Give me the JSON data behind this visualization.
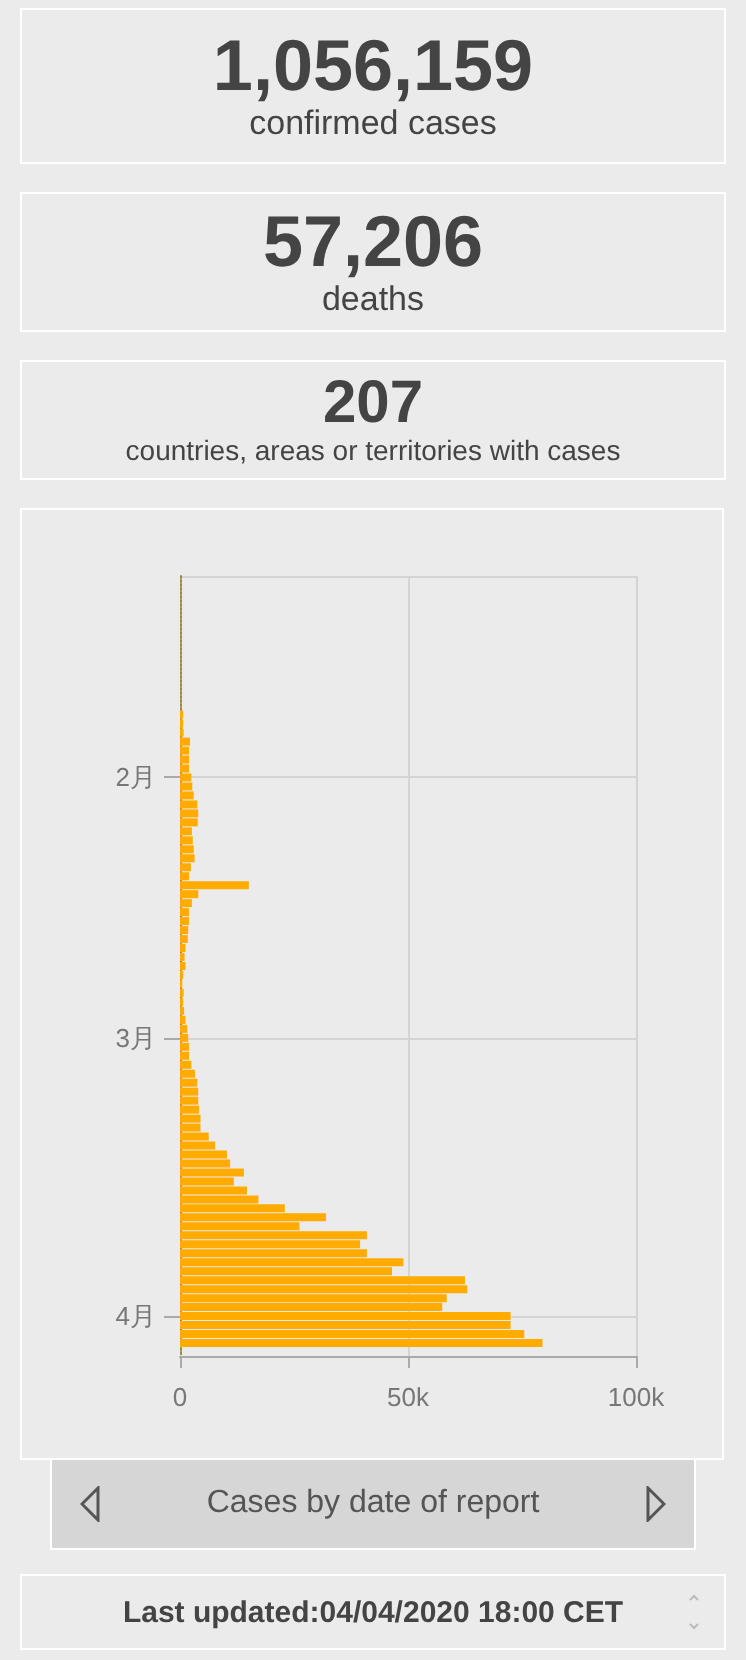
{
  "chart_data": [
    {
      "type": "other",
      "title": "1,056,159",
      "subtitle": "confirmed cases"
    },
    {
      "type": "other",
      "title": "57,206",
      "subtitle": "deaths"
    },
    {
      "type": "other",
      "title": "207",
      "subtitle": "countries, areas or territories with cases"
    },
    {
      "type": "bar",
      "orientation": "horizontal",
      "title": "Cases by date of report",
      "color": "#ffab00",
      "grid": true,
      "x": [
        "2020-01-25",
        "2020-01-26",
        "2020-01-27",
        "2020-01-28",
        "2020-01-29",
        "2020-01-30",
        "2020-01-31",
        "2020-02-01",
        "2020-02-02",
        "2020-02-03",
        "2020-02-04",
        "2020-02-05",
        "2020-02-06",
        "2020-02-07",
        "2020-02-08",
        "2020-02-09",
        "2020-02-10",
        "2020-02-11",
        "2020-02-12",
        "2020-02-13",
        "2020-02-14",
        "2020-02-15",
        "2020-02-16",
        "2020-02-17",
        "2020-02-18",
        "2020-02-19",
        "2020-02-20",
        "2020-02-21",
        "2020-02-22",
        "2020-02-23",
        "2020-02-24",
        "2020-02-25",
        "2020-02-26",
        "2020-02-27",
        "2020-02-28",
        "2020-02-29",
        "2020-03-01",
        "2020-03-02",
        "2020-03-03",
        "2020-03-04",
        "2020-03-05",
        "2020-03-06",
        "2020-03-07",
        "2020-03-08",
        "2020-03-09",
        "2020-03-10",
        "2020-03-11",
        "2020-03-12",
        "2020-03-13",
        "2020-03-14",
        "2020-03-15",
        "2020-03-16",
        "2020-03-17",
        "2020-03-18",
        "2020-03-19",
        "2020-03-20",
        "2020-03-21",
        "2020-03-22",
        "2020-03-23",
        "2020-03-24",
        "2020-03-25",
        "2020-03-26",
        "2020-03-27",
        "2020-03-28",
        "2020-03-29",
        "2020-03-30",
        "2020-03-31",
        "2020-04-01",
        "2020-04-02",
        "2020-04-03",
        "2020-04-04"
      ],
      "values": [
        700,
        700,
        800,
        2200,
        2000,
        2000,
        2000,
        2500,
        2700,
        3000,
        3800,
        4000,
        3900,
        2600,
        2800,
        3000,
        3200,
        2400,
        2000,
        15100,
        4000,
        2600,
        2000,
        2000,
        1800,
        1700,
        1200,
        1000,
        1200,
        700,
        500,
        800,
        700,
        900,
        1200,
        1600,
        1800,
        2000,
        2000,
        2500,
        3300,
        3800,
        4000,
        4000,
        4200,
        4500,
        4500,
        6300,
        7700,
        10300,
        11000,
        14000,
        11800,
        14700,
        17200,
        23000,
        32000,
        26200,
        41000,
        39500,
        41000,
        49000,
        46500,
        62500,
        63000,
        58500,
        57500,
        72500,
        72500,
        75500,
        79500
      ],
      "xlim": [
        0,
        100000
      ],
      "xticks": [
        {
          "value": 0,
          "label": "0"
        },
        {
          "value": 50000,
          "label": "50k"
        },
        {
          "value": 100000,
          "label": "100k"
        }
      ],
      "ylim": [
        "2020-04-05",
        "2020-01-10"
      ],
      "yticks": [
        {
          "value": "2020-02-01",
          "label": "2月"
        },
        {
          "value": "2020-03-01",
          "label": "3月"
        },
        {
          "value": "2020-04-01",
          "label": "4月"
        }
      ]
    },
    {
      "type": "other",
      "title": "Last updated:04/04/2020 18:00 CET"
    }
  ]
}
